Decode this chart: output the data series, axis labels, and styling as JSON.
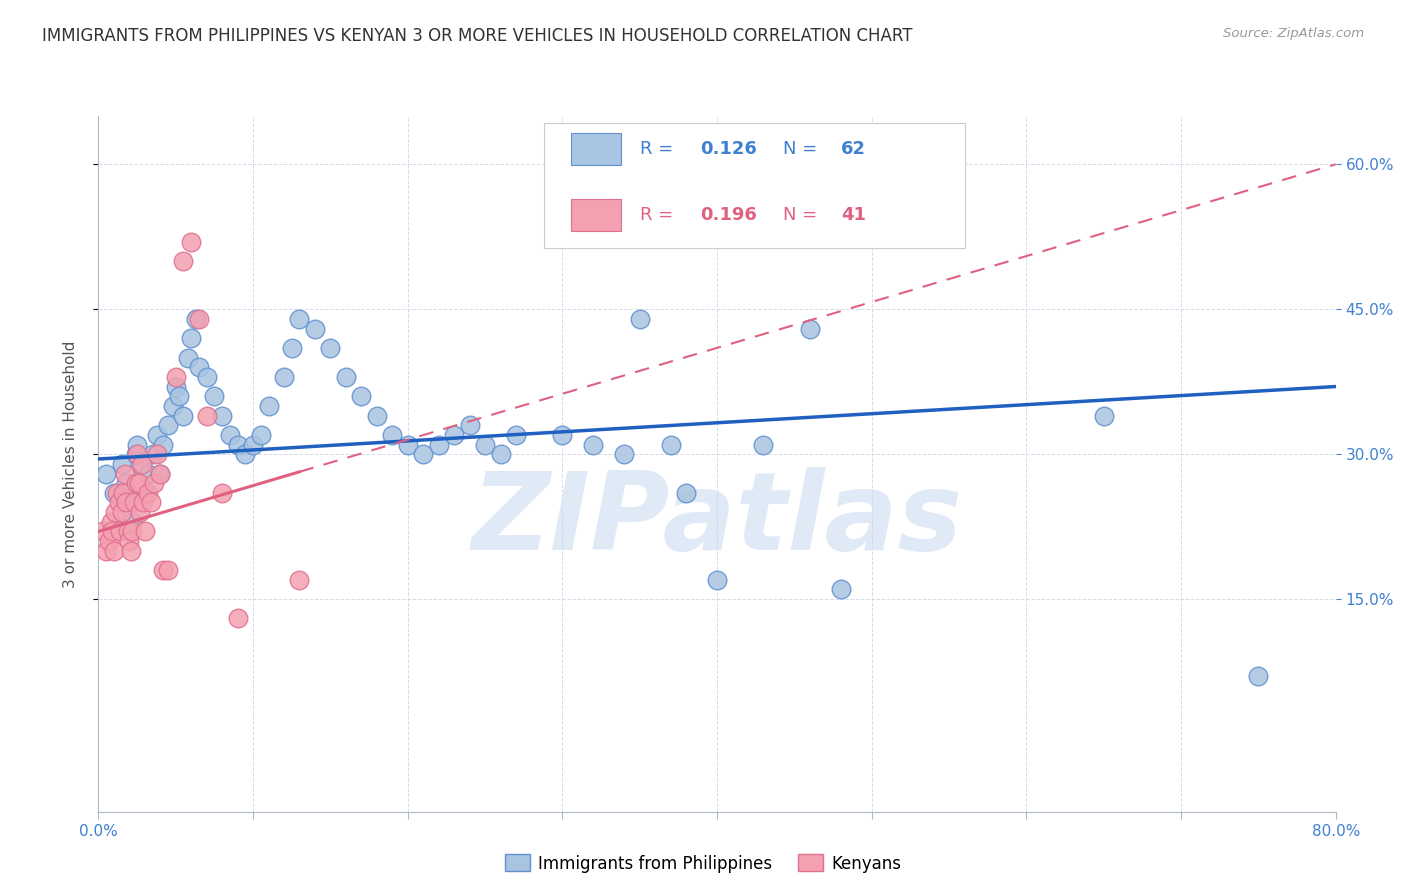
{
  "title": "IMMIGRANTS FROM PHILIPPINES VS KENYAN 3 OR MORE VEHICLES IN HOUSEHOLD CORRELATION CHART",
  "source": "Source: ZipAtlas.com",
  "ylabel": "3 or more Vehicles in Household",
  "x_min": 0.0,
  "x_max": 0.8,
  "y_min": -0.07,
  "y_max": 0.65,
  "y_ticks": [
    0.15,
    0.3,
    0.45,
    0.6
  ],
  "x_ticks": [
    0.0,
    0.1,
    0.2,
    0.3,
    0.4,
    0.5,
    0.6,
    0.7,
    0.8
  ],
  "watermark": "ZIPatlas",
  "watermark_color": "#c8d8f0",
  "blue_line_color": "#2060c0",
  "pink_line_color": "#e06080",
  "philippines_scatter_color": "#a8c4e0",
  "kenya_scatter_color": "#f4a0b0",
  "philippines_edge_color": "#6090d0",
  "kenya_edge_color": "#e07090",
  "blue_line_y_start": 0.295,
  "blue_line_y_end": 0.37,
  "pink_line_y_start": 0.22,
  "pink_line_y_end": 0.6,
  "grid_color": "#d0d8e8",
  "background_color": "#ffffff",
  "title_fontsize": 12,
  "axis_label_fontsize": 11,
  "tick_fontsize": 11,
  "legend_R1": "0.126",
  "legend_N1": "62",
  "legend_R2": "0.196",
  "legend_N2": "41",
  "legend_color_blue": "#4080d0",
  "legend_color_pink": "#e06080",
  "philippines_points_x": [
    0.005,
    0.01,
    0.015,
    0.018,
    0.02,
    0.022,
    0.024,
    0.025,
    0.027,
    0.03,
    0.032,
    0.035,
    0.038,
    0.04,
    0.042,
    0.045,
    0.048,
    0.05,
    0.052,
    0.055,
    0.058,
    0.06,
    0.063,
    0.065,
    0.07,
    0.075,
    0.08,
    0.085,
    0.09,
    0.095,
    0.1,
    0.105,
    0.11,
    0.12,
    0.125,
    0.13,
    0.14,
    0.15,
    0.16,
    0.17,
    0.18,
    0.19,
    0.2,
    0.21,
    0.22,
    0.23,
    0.24,
    0.25,
    0.26,
    0.27,
    0.3,
    0.32,
    0.34,
    0.35,
    0.37,
    0.38,
    0.4,
    0.43,
    0.46,
    0.48,
    0.65,
    0.75
  ],
  "philippines_points_y": [
    0.28,
    0.26,
    0.29,
    0.27,
    0.25,
    0.23,
    0.3,
    0.31,
    0.29,
    0.26,
    0.28,
    0.3,
    0.32,
    0.28,
    0.31,
    0.33,
    0.35,
    0.37,
    0.36,
    0.34,
    0.4,
    0.42,
    0.44,
    0.39,
    0.38,
    0.36,
    0.34,
    0.32,
    0.31,
    0.3,
    0.31,
    0.32,
    0.35,
    0.38,
    0.41,
    0.44,
    0.43,
    0.41,
    0.38,
    0.36,
    0.34,
    0.32,
    0.31,
    0.3,
    0.31,
    0.32,
    0.33,
    0.31,
    0.3,
    0.32,
    0.32,
    0.31,
    0.3,
    0.44,
    0.31,
    0.26,
    0.17,
    0.31,
    0.43,
    0.16,
    0.34,
    0.07
  ],
  "kenya_points_x": [
    0.003,
    0.005,
    0.007,
    0.008,
    0.009,
    0.01,
    0.011,
    0.012,
    0.013,
    0.014,
    0.015,
    0.016,
    0.017,
    0.018,
    0.019,
    0.02,
    0.021,
    0.022,
    0.023,
    0.024,
    0.025,
    0.026,
    0.027,
    0.028,
    0.029,
    0.03,
    0.032,
    0.034,
    0.036,
    0.038,
    0.04,
    0.042,
    0.045,
    0.05,
    0.055,
    0.06,
    0.065,
    0.07,
    0.08,
    0.09,
    0.13
  ],
  "kenya_points_y": [
    0.22,
    0.2,
    0.21,
    0.23,
    0.22,
    0.2,
    0.24,
    0.26,
    0.25,
    0.22,
    0.24,
    0.26,
    0.28,
    0.25,
    0.22,
    0.21,
    0.2,
    0.22,
    0.25,
    0.27,
    0.3,
    0.27,
    0.24,
    0.29,
    0.25,
    0.22,
    0.26,
    0.25,
    0.27,
    0.3,
    0.28,
    0.18,
    0.18,
    0.38,
    0.5,
    0.52,
    0.44,
    0.34,
    0.26,
    0.13,
    0.17
  ]
}
